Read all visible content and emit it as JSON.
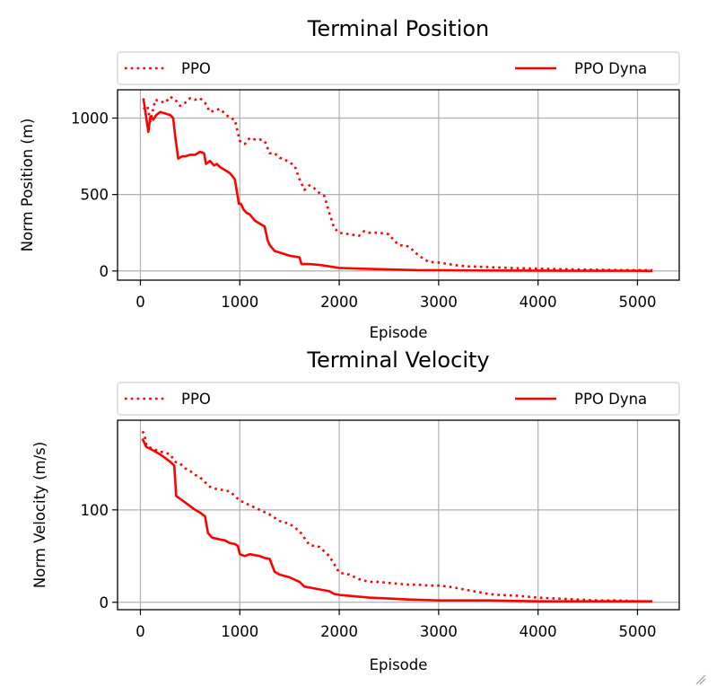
{
  "chart_data": [
    {
      "type": "line",
      "title": "Terminal Position",
      "xlabel": "Episode",
      "ylabel": "Norm Position (m)",
      "xlim": [
        -230,
        5420
      ],
      "ylim": [
        -60,
        1185
      ],
      "xticks": [
        0,
        1000,
        2000,
        3000,
        4000,
        5000
      ],
      "yticks": [
        0,
        500,
        1000
      ],
      "xtick_labels": [
        "0",
        "1000",
        "2000",
        "3000",
        "4000",
        "5000"
      ],
      "ytick_labels": [
        "0",
        "500",
        "1000"
      ],
      "grid": true,
      "legend": {
        "placement": "top, above plot",
        "entries": [
          "PPO",
          "PPO Dyna"
        ]
      },
      "series": [
        {
          "name": "PPO",
          "style": "dotted",
          "color": "#ff0000",
          "x": [
            30,
            70,
            100,
            150,
            200,
            250,
            300,
            350,
            400,
            450,
            500,
            550,
            600,
            650,
            700,
            750,
            800,
            850,
            900,
            950,
            1000,
            1050,
            1100,
            1150,
            1200,
            1250,
            1300,
            1350,
            1400,
            1450,
            1500,
            1550,
            1600,
            1650,
            1700,
            1750,
            1800,
            1850,
            1900,
            1950,
            2000,
            2100,
            2200,
            2250,
            2300,
            2400,
            2500,
            2550,
            2600,
            2700,
            2750,
            2800,
            2900,
            3000,
            3100,
            3200,
            3300,
            3400,
            3500,
            3700,
            4000,
            4200,
            4400,
            4600,
            4800,
            5000,
            5150
          ],
          "y": [
            1060,
            1080,
            980,
            1120,
            1110,
            1100,
            1140,
            1120,
            1080,
            1100,
            1130,
            1120,
            1130,
            1100,
            1040,
            1050,
            1060,
            1030,
            1000,
            990,
            850,
            830,
            870,
            860,
            860,
            850,
            770,
            770,
            740,
            730,
            710,
            690,
            600,
            530,
            560,
            540,
            510,
            490,
            380,
            280,
            250,
            240,
            230,
            260,
            250,
            250,
            240,
            200,
            170,
            160,
            130,
            100,
            60,
            55,
            45,
            35,
            30,
            28,
            25,
            20,
            15,
            12,
            10,
            8,
            6,
            5,
            5
          ]
        },
        {
          "name": "PPO Dyna",
          "style": "solid",
          "color": "#ff0000",
          "x": [
            30,
            60,
            80,
            100,
            130,
            160,
            200,
            250,
            300,
            330,
            350,
            380,
            420,
            450,
            500,
            550,
            600,
            640,
            660,
            700,
            740,
            770,
            800,
            850,
            900,
            950,
            980,
            990,
            1010,
            1040,
            1070,
            1100,
            1150,
            1200,
            1250,
            1280,
            1300,
            1350,
            1400,
            1500,
            1600,
            1620,
            1650,
            1700,
            1800,
            1900,
            2000,
            2200,
            2500,
            2800,
            3000,
            3500,
            4000,
            4500,
            5000,
            5150
          ],
          "y": [
            1130,
            1000,
            910,
            1010,
            990,
            1020,
            1040,
            1030,
            1020,
            1000,
            880,
            735,
            750,
            750,
            760,
            760,
            780,
            770,
            700,
            720,
            690,
            700,
            680,
            660,
            640,
            600,
            480,
            440,
            440,
            400,
            380,
            370,
            330,
            310,
            290,
            200,
            170,
            130,
            120,
            100,
            90,
            45,
            45,
            45,
            40,
            30,
            20,
            15,
            10,
            5,
            5,
            3,
            2,
            1,
            1,
            0
          ]
        }
      ]
    },
    {
      "type": "line",
      "title": "Terminal Velocity",
      "xlabel": "Episode",
      "ylabel": "Norm Velocity (m/s)",
      "xlim": [
        -230,
        5420
      ],
      "ylim": [
        -8,
        197
      ],
      "xticks": [
        0,
        1000,
        2000,
        3000,
        4000,
        5000
      ],
      "yticks": [
        0,
        100
      ],
      "xtick_labels": [
        "0",
        "1000",
        "2000",
        "3000",
        "4000",
        "5000"
      ],
      "ytick_labels": [
        "0",
        "100"
      ],
      "grid": true,
      "legend": {
        "placement": "top, above plot",
        "entries": [
          "PPO",
          "PPO Dyna"
        ]
      },
      "series": [
        {
          "name": "PPO",
          "style": "dotted",
          "color": "#ff0000",
          "x": [
            20,
            40,
            60,
            80,
            150,
            200,
            250,
            300,
            350,
            400,
            450,
            500,
            550,
            600,
            650,
            700,
            750,
            800,
            900,
            1000,
            1100,
            1200,
            1300,
            1400,
            1500,
            1600,
            1700,
            1800,
            1900,
            2000,
            2100,
            2200,
            2300,
            2400,
            2500,
            2600,
            2700,
            2800,
            2900,
            3000,
            3100,
            3200,
            3300,
            3400,
            3500,
            3600,
            3800,
            4000,
            4200,
            4400,
            4600,
            4800,
            5000,
            5150
          ],
          "y": [
            185,
            182,
            170,
            168,
            165,
            163,
            162,
            160,
            152,
            150,
            145,
            142,
            138,
            135,
            130,
            125,
            123,
            122,
            120,
            110,
            105,
            100,
            95,
            88,
            85,
            77,
            62,
            60,
            50,
            32,
            30,
            25,
            22,
            22,
            21,
            20,
            19,
            19,
            18,
            18,
            17,
            15,
            13,
            11,
            9,
            8,
            7,
            5,
            4,
            3,
            2,
            2,
            1,
            1
          ]
        },
        {
          "name": "PPO Dyna",
          "style": "solid",
          "color": "#ff0000",
          "x": [
            20,
            60,
            100,
            150,
            200,
            250,
            300,
            340,
            360,
            400,
            450,
            500,
            550,
            600,
            650,
            680,
            720,
            800,
            850,
            900,
            950,
            980,
            1000,
            1050,
            1100,
            1200,
            1250,
            1300,
            1350,
            1400,
            1500,
            1600,
            1650,
            1700,
            1800,
            1900,
            1950,
            2000,
            2100,
            2200,
            2300,
            2500,
            2700,
            3000,
            3500,
            4000,
            4500,
            5000,
            5150
          ],
          "y": [
            177,
            168,
            166,
            163,
            160,
            156,
            152,
            148,
            115,
            112,
            108,
            104,
            100,
            97,
            93,
            75,
            70,
            68,
            67,
            64,
            63,
            61,
            52,
            50,
            52,
            50,
            48,
            47,
            33,
            30,
            27,
            22,
            17,
            16,
            14,
            12,
            9,
            8,
            7,
            6,
            5,
            4,
            3,
            2,
            2,
            1,
            1,
            1,
            1
          ]
        }
      ]
    }
  ]
}
